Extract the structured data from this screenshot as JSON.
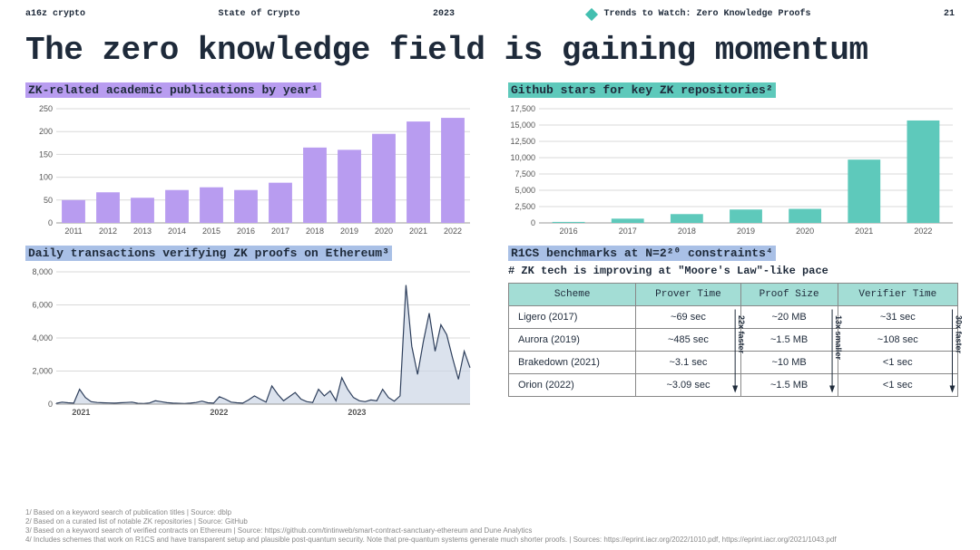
{
  "header": {
    "brand": "a16z crypto",
    "report": "State of Crypto",
    "year": "2023",
    "section": "Trends to Watch: Zero Knowledge Proofs",
    "page": "21"
  },
  "title": "The zero knowledge field is gaining momentum",
  "publications": {
    "title": "ZK-related academic publications by year¹",
    "type": "bar",
    "highlight_color": "#b89cf0",
    "bar_color": "#b89cf0",
    "categories": [
      "2011",
      "2012",
      "2013",
      "2014",
      "2015",
      "2016",
      "2017",
      "2018",
      "2019",
      "2020",
      "2021",
      "2022"
    ],
    "values": [
      50,
      67,
      55,
      72,
      78,
      72,
      88,
      165,
      160,
      195,
      222,
      230
    ],
    "ylim": [
      0,
      250
    ],
    "ytick_step": 50,
    "grid_color": "#d9d9d9",
    "background": "#ffffff",
    "bar_width": 0.68
  },
  "stars": {
    "title": "Github stars for key ZK repositories²",
    "type": "bar",
    "highlight_color": "#5ec9bb",
    "bar_color": "#5ec9bb",
    "categories": [
      "2016",
      "2017",
      "2018",
      "2019",
      "2020",
      "2021",
      "2022"
    ],
    "values": [
      150,
      650,
      1350,
      2050,
      2150,
      9700,
      15700
    ],
    "ylim": [
      0,
      17500
    ],
    "ytick_step": 2500,
    "grid_color": "#d9d9d9",
    "background": "#ffffff",
    "bar_width": 0.55
  },
  "tx": {
    "title": "Daily transactions verifying ZK proofs on Ethereum³",
    "type": "area",
    "highlight_color": "#a9c0e6",
    "line_color": "#2e3f5c",
    "fill_color": "#c8d3e4",
    "x_labels": [
      "2021",
      "2022",
      "2023"
    ],
    "ylim": [
      0,
      8000
    ],
    "ytick_step": 2000,
    "grid_color": "#d9d9d9",
    "series": [
      50,
      120,
      80,
      60,
      900,
      400,
      150,
      100,
      80,
      70,
      60,
      80,
      100,
      120,
      50,
      40,
      70,
      200,
      150,
      90,
      60,
      50,
      40,
      60,
      100,
      180,
      80,
      60,
      450,
      300,
      120,
      80,
      60,
      250,
      500,
      300,
      120,
      1100,
      600,
      200,
      450,
      700,
      300,
      150,
      100,
      900,
      500,
      800,
      200,
      1600,
      900,
      400,
      200,
      150,
      250,
      200,
      900,
      400,
      180,
      500,
      7200,
      3500,
      1800,
      3800,
      5500,
      3200,
      4800,
      4200,
      2800,
      1500,
      3200,
      2200
    ]
  },
  "bench": {
    "title": "R1CS benchmarks at N=2²⁰ constraints⁴",
    "subtitle": "# ZK tech is improving at \"Moore's Law\"-like pace",
    "highlight_color": "#a9c0e6",
    "header_color": "#a3ddd5",
    "border_color": "#888888",
    "columns": [
      "Scheme",
      "Prover Time",
      "Proof Size",
      "Verifier Time"
    ],
    "rows": [
      [
        "Ligero (2017)",
        "~69 sec",
        "~20 MB",
        "~31 sec"
      ],
      [
        "Aurora (2019)",
        "~485 sec",
        "~1.5 MB",
        "~108 sec"
      ],
      [
        "Brakedown (2021)",
        "~3.1 sec",
        "~10 MB",
        "<1 sec"
      ],
      [
        "Orion (2022)",
        "~3.09 sec",
        "~1.5 MB",
        "<1 sec"
      ]
    ],
    "arrows": [
      {
        "label": "22x faster"
      },
      {
        "label": "13x smaller"
      },
      {
        "label": "30x faster"
      }
    ]
  },
  "footnotes": [
    "1/ Based on a keyword search of publication titles | Source: dblp",
    "2/ Based on a curated list of notable ZK repositories | Source: GitHub",
    "3/ Based on a keyword search of verified contracts on Ethereum | Source: https://github.com/tintinweb/smart-contract-sanctuary-ethereum and Dune Analytics",
    "4/ Includes schemes that work on R1CS and have transparent setup and plausible post-quantum security. Note that pre-quantum systems generate much shorter proofs. | Sources: https://eprint.iacr.org/2022/1010.pdf, https://eprint.iacr.org/2021/1043.pdf"
  ]
}
